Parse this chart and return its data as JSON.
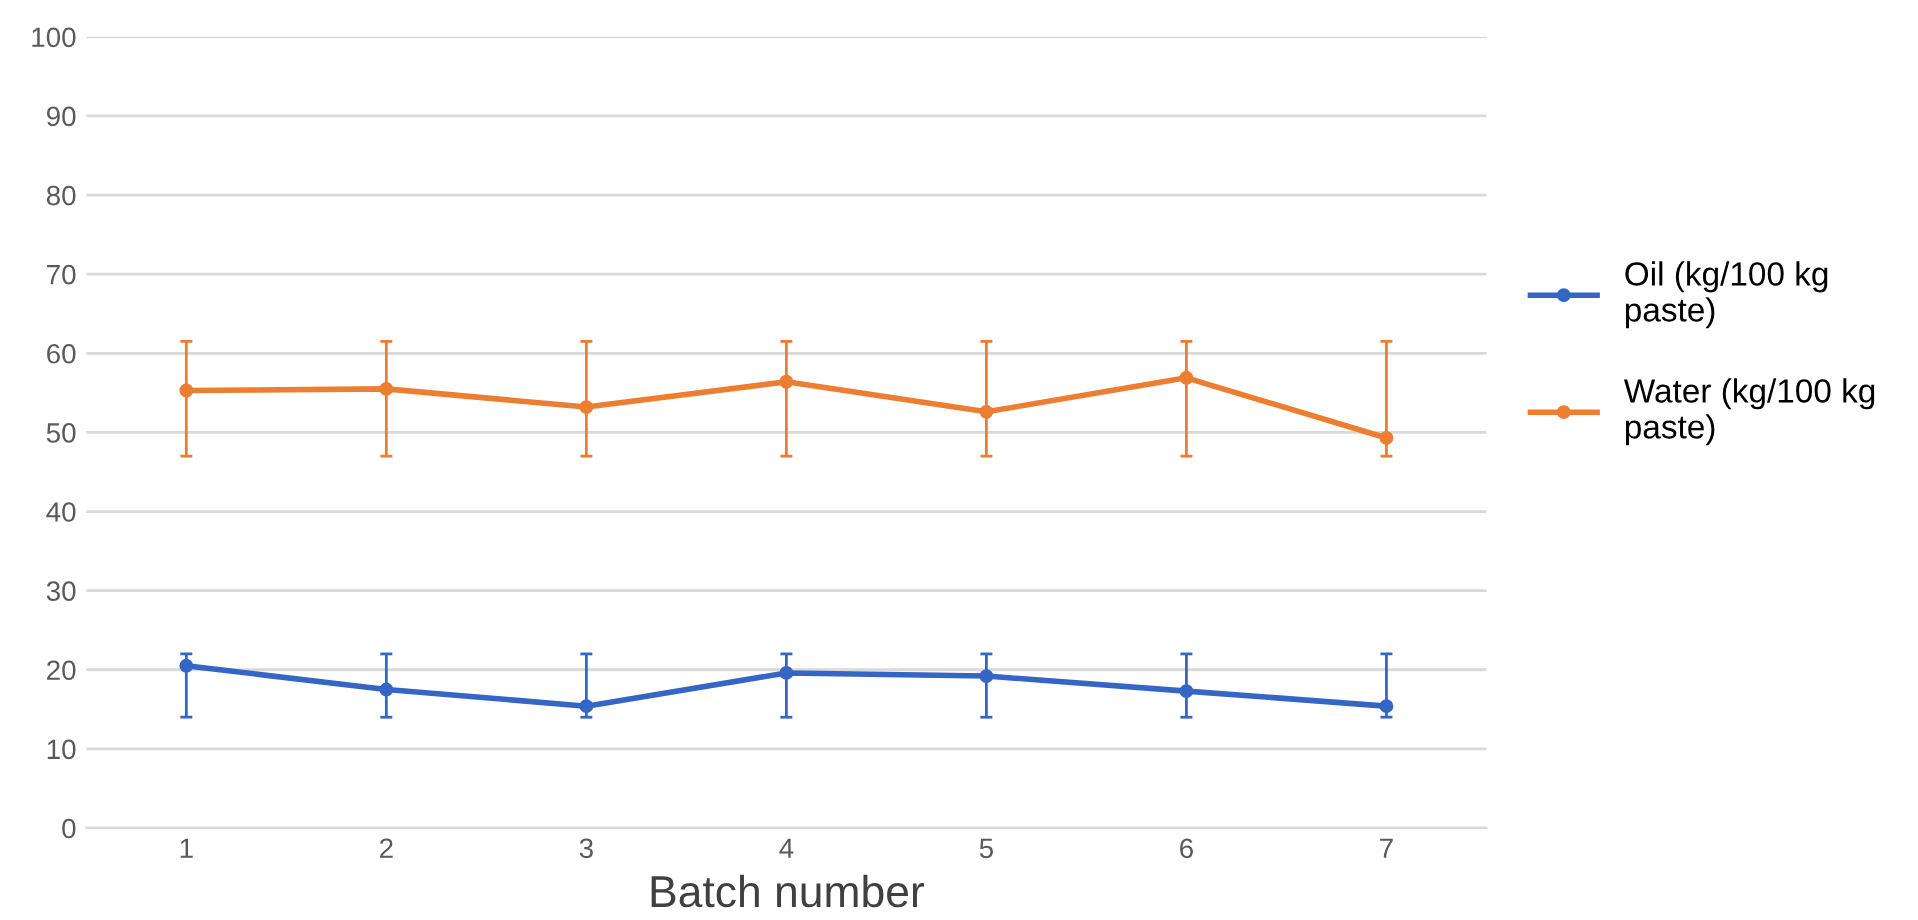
{
  "chart_data": {
    "type": "line",
    "xlabel": "Batch number",
    "categories": [
      "1",
      "2",
      "3",
      "4",
      "5",
      "6",
      "7"
    ],
    "series": [
      {
        "name": "Oil (kg/100 kg paste)",
        "color": "#3565c5",
        "values": [
          20.5,
          17.5,
          15.4,
          19.6,
          19.2,
          17.3,
          15.4
        ],
        "errors": [
          [
            14,
            22
          ],
          [
            14,
            22
          ],
          [
            14,
            22
          ],
          [
            14,
            22
          ],
          [
            14,
            22
          ],
          [
            14,
            22
          ],
          [
            14,
            22
          ]
        ]
      },
      {
        "name": "Water (kg/100 kg paste)",
        "color": "#ed7d31",
        "values": [
          55.3,
          55.5,
          53.2,
          56.4,
          52.6,
          56.9,
          49.3
        ],
        "errors": [
          [
            47,
            61.5
          ],
          [
            47,
            61.5
          ],
          [
            47,
            61.5
          ],
          [
            47,
            61.5
          ],
          [
            47,
            61.5
          ],
          [
            47,
            61.5
          ],
          [
            47,
            61.5
          ]
        ]
      }
    ],
    "ylim": [
      0,
      100
    ],
    "yticks": [
      0,
      10,
      20,
      30,
      40,
      50,
      60,
      70,
      80,
      90,
      100
    ],
    "grid": "y",
    "legend": "right",
    "marker": "circle",
    "line_style": "solid"
  }
}
